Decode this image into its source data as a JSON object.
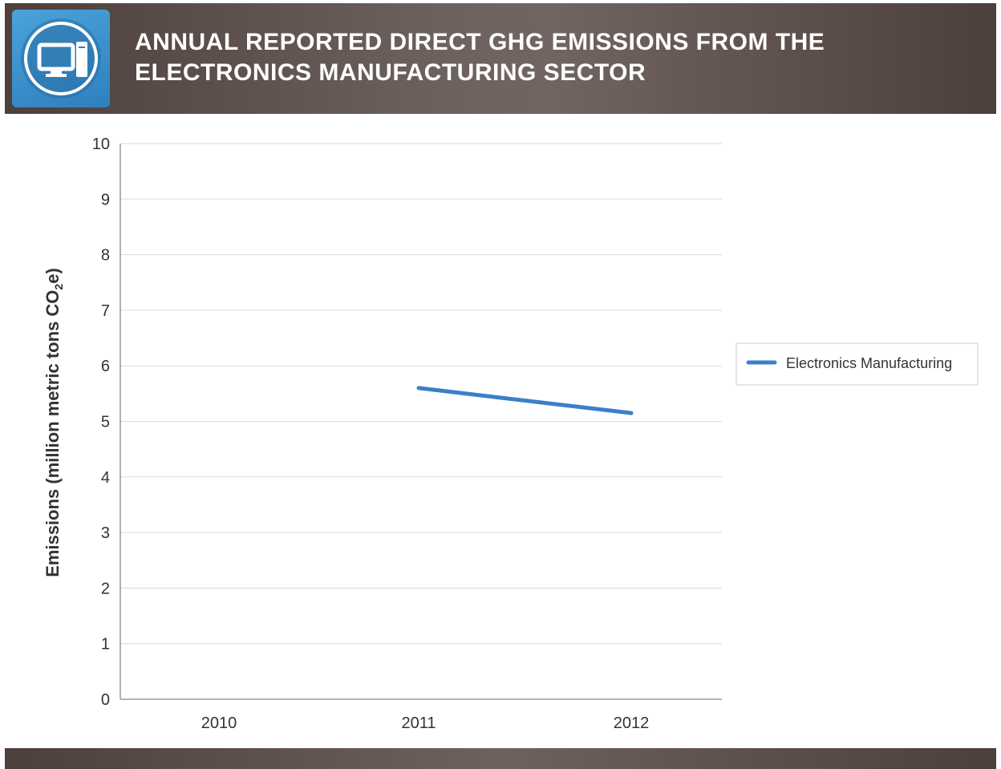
{
  "header": {
    "title_line1": "ANNUAL REPORTED DIRECT GHG EMISSIONS FROM THE",
    "title_line2": "ELECTRONICS MANUFACTURING SECTOR",
    "icon": "computer-icon"
  },
  "colors": {
    "header_bg": "#5e514d",
    "icon_tile": "#3a8fcb",
    "series_line": "#3c7fc6",
    "grid": "#d9d9d9"
  },
  "chart_data": {
    "type": "line",
    "categories": [
      "2010",
      "2011",
      "2012"
    ],
    "series": [
      {
        "name": "Electronics Manufacturing",
        "values": [
          null,
          5.6,
          5.15
        ]
      }
    ],
    "title": "",
    "xlabel": "",
    "ylabel_main": "Emissions (million metric tons CO",
    "ylabel_sub": "2",
    "ylabel_tail": "e)",
    "ylim": [
      0,
      10
    ],
    "yticks": [
      "0",
      "1",
      "2",
      "3",
      "4",
      "5",
      "6",
      "7",
      "8",
      "9",
      "10"
    ],
    "grid": true,
    "legend_position": "right"
  }
}
